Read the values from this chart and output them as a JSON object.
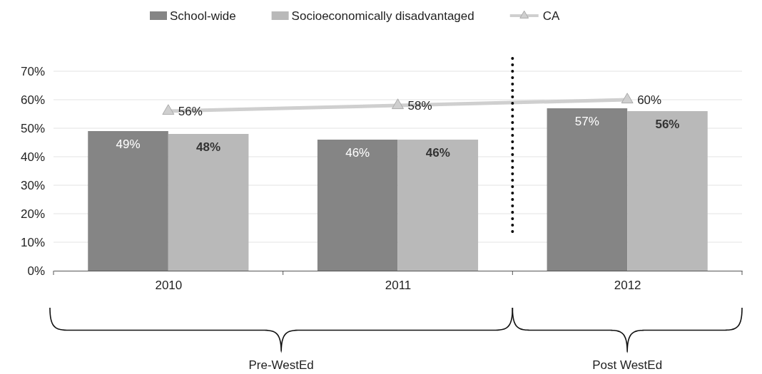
{
  "chart_data": {
    "type": "bar",
    "categories": [
      "2010",
      "2011",
      "2012"
    ],
    "series": [
      {
        "name": "School-wide",
        "color": "#858585",
        "values": [
          49,
          46,
          57
        ],
        "value_labels": [
          "49%",
          "46%",
          "57%"
        ]
      },
      {
        "name": "Socioeconomically disadvantaged",
        "color": "#b9b9b9",
        "values": [
          48,
          46,
          56
        ],
        "value_labels": [
          "48%",
          "46%",
          "56%"
        ]
      },
      {
        "name": "CA",
        "type": "line",
        "color": "#cfcfcf",
        "values": [
          56,
          58,
          60
        ],
        "value_labels": [
          "56%",
          "58%",
          "60%"
        ]
      }
    ],
    "ylim": [
      0,
      70
    ],
    "yticks": [
      {
        "value": 0,
        "label": "0%"
      },
      {
        "value": 10,
        "label": "10%"
      },
      {
        "value": 20,
        "label": "20%"
      },
      {
        "value": 30,
        "label": "30%"
      },
      {
        "value": 40,
        "label": "40%"
      },
      {
        "value": 50,
        "label": "50%"
      },
      {
        "value": 60,
        "label": "60%"
      },
      {
        "value": 70,
        "label": "70%"
      }
    ],
    "grid": "y",
    "legend": "top",
    "marker": "triangle",
    "annotations": [
      "Pre-WestEd",
      "Post WestEd"
    ]
  }
}
